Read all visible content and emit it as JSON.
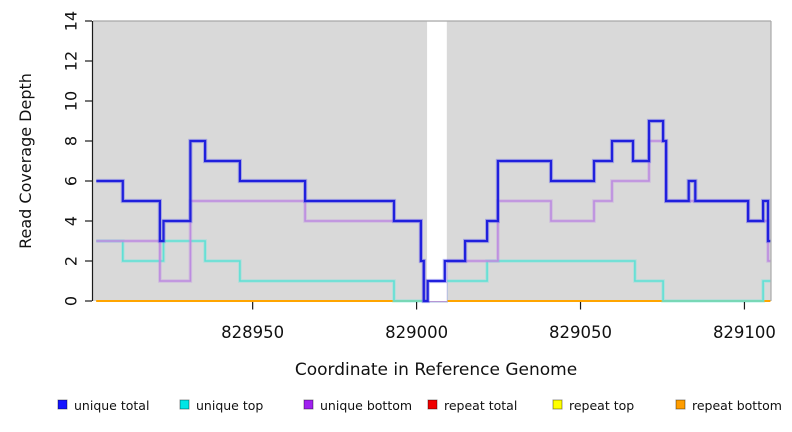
{
  "chart_data": {
    "type": "line",
    "subtype": "step-coverage",
    "title": "",
    "xlabel": "Coordinate in Reference Genome",
    "ylabel": "Read Coverage Depth",
    "xlim": [
      828901.3,
      829108.1
    ],
    "ylim": [
      0,
      14
    ],
    "x_ticks": [
      828950,
      829000,
      829050,
      829100
    ],
    "y_ticks": [
      0,
      2,
      4,
      6,
      8,
      10,
      12,
      14
    ],
    "grid": "off",
    "panel_bg": "#d9d9d9",
    "panel_border_color": "#a9a9a9",
    "axis_color": "#1a1a1a",
    "masked_region": {
      "x0": 829003.2,
      "x1": 829009.2,
      "color": "#ffffff"
    },
    "series": [
      {
        "name": "repeat total",
        "color": "#f00000",
        "halo": null,
        "width": 1.4,
        "points": [
          [
            828902.3,
            0
          ],
          [
            829107.9,
            0
          ]
        ]
      },
      {
        "name": "repeat top",
        "color": "#ffff00",
        "halo": null,
        "width": 1.4,
        "points": [
          [
            828902.3,
            0
          ],
          [
            829107.9,
            0
          ]
        ]
      },
      {
        "name": "repeat bottom",
        "color": "#ffa500",
        "halo": null,
        "width": 2,
        "points": [
          [
            828902.3,
            0
          ],
          [
            829107.9,
            0
          ]
        ]
      },
      {
        "name": "unique top",
        "color": "#5fe0d5",
        "halo": "rgba(120,230,220,0.4)",
        "width": 1.6,
        "points": [
          [
            828902.3,
            3
          ],
          [
            828910.4,
            2
          ],
          [
            828922.8,
            3
          ],
          [
            828935.5,
            2
          ],
          [
            828946.1,
            1
          ],
          [
            828993.1,
            0
          ],
          [
            829009.0,
            1
          ],
          [
            829021.5,
            2
          ],
          [
            829066.6,
            1
          ],
          [
            829075.2,
            0
          ],
          [
            829105.7,
            1
          ],
          [
            829107.9,
            1
          ]
        ]
      },
      {
        "name": "unique bottom",
        "color": "#bd8ce0",
        "halo": "rgba(190,140,230,0.35)",
        "width": 1.6,
        "points": [
          [
            828902.3,
            3
          ],
          [
            828921.7,
            1
          ],
          [
            828931.0,
            5
          ],
          [
            828966.0,
            4
          ],
          [
            829001.3,
            2
          ],
          [
            829002.2,
            0
          ],
          [
            829009.0,
            2
          ],
          [
            829024.8,
            5
          ],
          [
            829041.0,
            4
          ],
          [
            829054.1,
            5
          ],
          [
            829059.6,
            6
          ],
          [
            829070.9,
            8
          ],
          [
            829076.1,
            5
          ],
          [
            829101.1,
            4
          ],
          [
            829107.2,
            2
          ],
          [
            829107.9,
            2
          ]
        ]
      },
      {
        "name": "unique total",
        "color": "#2020dd",
        "halo": "rgba(90,90,235,0.4)",
        "width": 2.2,
        "points": [
          [
            828902.3,
            6
          ],
          [
            828910.4,
            5
          ],
          [
            828921.7,
            3
          ],
          [
            828922.8,
            4
          ],
          [
            828931.0,
            8
          ],
          [
            828935.5,
            7
          ],
          [
            828946.1,
            6
          ],
          [
            828966.0,
            5
          ],
          [
            828993.1,
            4
          ],
          [
            829001.3,
            2
          ],
          [
            829002.2,
            0
          ],
          [
            829003.4,
            1
          ],
          [
            829008.6,
            2
          ],
          [
            829014.8,
            3
          ],
          [
            829021.5,
            4
          ],
          [
            829024.8,
            7
          ],
          [
            829041.0,
            6
          ],
          [
            829054.1,
            7
          ],
          [
            829059.6,
            8
          ],
          [
            829066.0,
            7
          ],
          [
            829070.9,
            9
          ],
          [
            829075.2,
            8
          ],
          [
            829076.1,
            5
          ],
          [
            829083.0,
            6
          ],
          [
            829085.0,
            5
          ],
          [
            829101.1,
            4
          ],
          [
            829105.7,
            5
          ],
          [
            829107.2,
            3
          ],
          [
            829107.9,
            3
          ]
        ]
      }
    ],
    "legend": [
      {
        "label": "unique total",
        "color": "#1414ff"
      },
      {
        "label": "unique top",
        "color": "#00e6e6"
      },
      {
        "label": "unique bottom",
        "color": "#a020f0"
      },
      {
        "label": "repeat total",
        "color": "#f00000"
      },
      {
        "label": "repeat top",
        "color": "#ffff00"
      },
      {
        "label": "repeat bottom",
        "color": "#ff9d00"
      }
    ],
    "legend_position": "bottom-row",
    "legend_item_x": [
      58,
      180,
      304,
      428,
      553,
      676
    ]
  }
}
